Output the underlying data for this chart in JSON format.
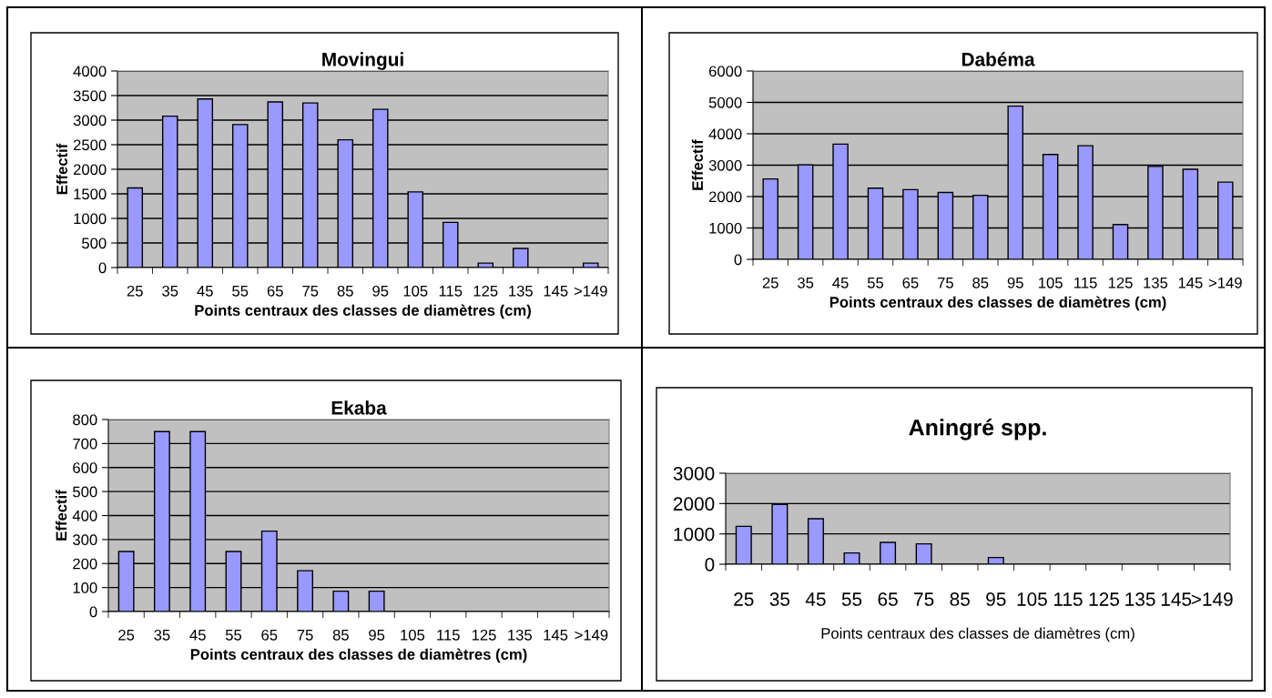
{
  "chart_data": [
    {
      "type": "bar",
      "title": "Movingui",
      "xlabel": "Points centraux des classes de diamètres (cm)",
      "ylabel": "Effectif",
      "categories": [
        "25",
        "35",
        "45",
        "55",
        "65",
        "75",
        "85",
        "95",
        "105",
        "115",
        "125",
        "135",
        "145",
        ">149"
      ],
      "values": [
        1620,
        3080,
        3430,
        2910,
        3370,
        3350,
        2600,
        3220,
        1540,
        920,
        90,
        390,
        0,
        90
      ],
      "color": "#9999ff",
      "ylim": [
        0,
        4000
      ],
      "yticks": [
        0,
        500,
        1000,
        1500,
        2000,
        2500,
        3000,
        3500,
        4000
      ],
      "grid": "y"
    },
    {
      "type": "bar",
      "title": "Dabéma",
      "xlabel": "Points centraux des classes de diamètres (cm)",
      "ylabel": "Effectif",
      "categories": [
        "25",
        "35",
        "45",
        "55",
        "65",
        "75",
        "85",
        "95",
        "105",
        "115",
        "125",
        "135",
        "145",
        ">149"
      ],
      "values": [
        2560,
        3010,
        3670,
        2270,
        2220,
        2130,
        2040,
        4880,
        3340,
        3620,
        1110,
        2960,
        2870,
        2460
      ],
      "color": "#9999ff",
      "ylim": [
        0,
        6000
      ],
      "yticks": [
        0,
        1000,
        2000,
        3000,
        4000,
        5000,
        6000
      ],
      "grid": "y"
    },
    {
      "type": "bar",
      "title": "Ekaba",
      "xlabel": "Points centraux des classes de diamètres (cm)",
      "ylabel": "Effectif",
      "categories": [
        "25",
        "35",
        "45",
        "55",
        "65",
        "75",
        "85",
        "95",
        "105",
        "115",
        "125",
        "135",
        "145",
        ">149"
      ],
      "values": [
        250,
        750,
        750,
        250,
        335,
        170,
        85,
        85,
        0,
        0,
        0,
        0,
        0,
        0
      ],
      "color": "#9999ff",
      "ylim": [
        0,
        800
      ],
      "yticks": [
        0,
        100,
        200,
        300,
        400,
        500,
        600,
        700,
        800
      ],
      "grid": "y"
    },
    {
      "type": "bar",
      "title": "Aningré spp.",
      "xlabel": "Points centraux des classes de diamètres (cm)",
      "categories": [
        "25",
        "35",
        "45",
        "55",
        "65",
        "75",
        "85",
        "95",
        "105",
        "115",
        "125",
        "135",
        "145",
        ">149"
      ],
      "values": [
        1250,
        1970,
        1500,
        370,
        720,
        670,
        0,
        220,
        0,
        0,
        0,
        0,
        0,
        0
      ],
      "color": "#9999ff",
      "ylim": [
        0,
        3000
      ],
      "yticks": [
        0,
        1000,
        2000,
        3000
      ],
      "grid": "y"
    }
  ]
}
